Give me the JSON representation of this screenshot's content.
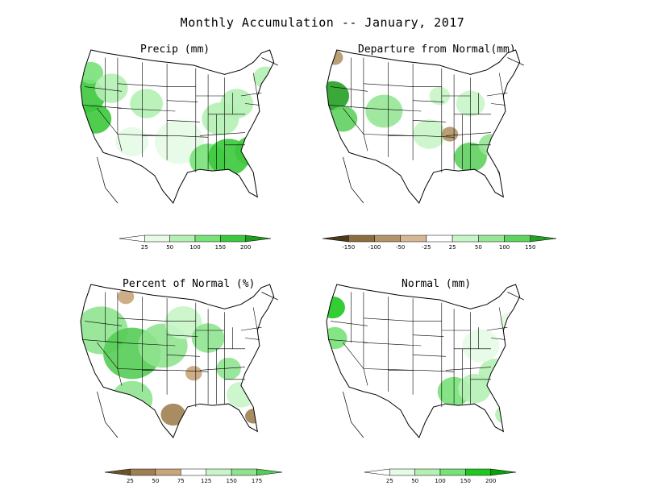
{
  "title": "Monthly Accumulation -- January, 2017",
  "panels": [
    {
      "title": "Precip (mm)",
      "scale": "precip",
      "blobs": [
        {
          "u": 0.03,
          "v": 0.3,
          "r": 0.09,
          "c": 4
        },
        {
          "u": 0.07,
          "v": 0.45,
          "r": 0.08,
          "c": 4
        },
        {
          "u": 0.05,
          "v": 0.15,
          "r": 0.06,
          "c": 3
        },
        {
          "u": 0.15,
          "v": 0.25,
          "r": 0.08,
          "c": 2
        },
        {
          "u": 0.32,
          "v": 0.35,
          "r": 0.08,
          "c": 2
        },
        {
          "u": 0.48,
          "v": 0.6,
          "r": 0.12,
          "c": 1
        },
        {
          "u": 0.62,
          "v": 0.72,
          "r": 0.09,
          "c": 3
        },
        {
          "u": 0.72,
          "v": 0.7,
          "r": 0.1,
          "c": 4
        },
        {
          "u": 0.83,
          "v": 0.66,
          "r": 0.08,
          "c": 4
        },
        {
          "u": 0.68,
          "v": 0.45,
          "r": 0.09,
          "c": 2
        },
        {
          "u": 0.76,
          "v": 0.35,
          "r": 0.08,
          "c": 2
        },
        {
          "u": 0.9,
          "v": 0.18,
          "r": 0.06,
          "c": 2
        },
        {
          "u": 0.25,
          "v": 0.6,
          "r": 0.08,
          "c": 1
        },
        {
          "u": 0.9,
          "v": 0.8,
          "r": 0.06,
          "c": 2
        }
      ]
    },
    {
      "title": "Departure from Normal(mm)",
      "scale": "departure",
      "blobs": [
        {
          "u": 0.03,
          "v": 0.3,
          "r": 0.08,
          "c": 8
        },
        {
          "u": 0.08,
          "v": 0.45,
          "r": 0.07,
          "c": 7
        },
        {
          "u": 0.04,
          "v": 0.05,
          "r": 0.04,
          "c": 2
        },
        {
          "u": 0.28,
          "v": 0.4,
          "r": 0.09,
          "c": 6
        },
        {
          "u": 0.5,
          "v": 0.55,
          "r": 0.08,
          "c": 5
        },
        {
          "u": 0.6,
          "v": 0.55,
          "r": 0.04,
          "c": 2
        },
        {
          "u": 0.7,
          "v": 0.7,
          "r": 0.08,
          "c": 7
        },
        {
          "u": 0.8,
          "v": 0.62,
          "r": 0.06,
          "c": 6
        },
        {
          "u": 0.88,
          "v": 0.78,
          "r": 0.05,
          "c": 2
        },
        {
          "u": 0.7,
          "v": 0.35,
          "r": 0.07,
          "c": 5
        },
        {
          "u": 0.55,
          "v": 0.3,
          "r": 0.05,
          "c": 5
        }
      ]
    },
    {
      "title": "Percent of Normal (%)",
      "scale": "percent",
      "blobs": [
        {
          "u": 0.1,
          "v": 0.3,
          "r": 0.13,
          "c": 5
        },
        {
          "u": 0.25,
          "v": 0.45,
          "r": 0.14,
          "c": 6
        },
        {
          "u": 0.4,
          "v": 0.4,
          "r": 0.12,
          "c": 5
        },
        {
          "u": 0.25,
          "v": 0.75,
          "r": 0.1,
          "c": 5
        },
        {
          "u": 0.5,
          "v": 0.25,
          "r": 0.09,
          "c": 4
        },
        {
          "u": 0.62,
          "v": 0.35,
          "r": 0.08,
          "c": 5
        },
        {
          "u": 0.72,
          "v": 0.55,
          "r": 0.06,
          "c": 5
        },
        {
          "u": 0.45,
          "v": 0.85,
          "r": 0.06,
          "c": 1
        },
        {
          "u": 0.55,
          "v": 0.58,
          "r": 0.04,
          "c": 2
        },
        {
          "u": 0.22,
          "v": 0.08,
          "r": 0.04,
          "c": 2
        },
        {
          "u": 0.84,
          "v": 0.86,
          "r": 0.04,
          "c": 1
        },
        {
          "u": 0.78,
          "v": 0.72,
          "r": 0.07,
          "c": 4
        }
      ]
    },
    {
      "title": "Normal (mm)",
      "scale": "normal",
      "blobs": [
        {
          "u": 0.03,
          "v": 0.15,
          "r": 0.06,
          "c": 4
        },
        {
          "u": 0.04,
          "v": 0.35,
          "r": 0.06,
          "c": 3
        },
        {
          "u": 0.62,
          "v": 0.7,
          "r": 0.08,
          "c": 3
        },
        {
          "u": 0.72,
          "v": 0.68,
          "r": 0.08,
          "c": 2
        },
        {
          "u": 0.82,
          "v": 0.58,
          "r": 0.08,
          "c": 2
        },
        {
          "u": 0.75,
          "v": 0.4,
          "r": 0.09,
          "c": 1
        },
        {
          "u": 0.9,
          "v": 0.25,
          "r": 0.06,
          "c": 1
        },
        {
          "u": 0.87,
          "v": 0.85,
          "r": 0.05,
          "c": 2
        }
      ]
    }
  ],
  "scales": {
    "precip": {
      "labels": [
        "25",
        "50",
        "100",
        "150",
        "200"
      ],
      "colors": [
        "#ffffff",
        "#e6fbe6",
        "#b4f0b4",
        "#78e178",
        "#3cc83c",
        "#1e9e1e"
      ],
      "has_dash_tail": true
    },
    "departure": {
      "labels": [
        "-150",
        "-100",
        "-50",
        "-25",
        "25",
        "50",
        "100",
        "150"
      ],
      "colors": [
        "#4a3a1a",
        "#8c6d3e",
        "#b39468",
        "#d4b894",
        "#ffffff",
        "#c8f5c8",
        "#96e696",
        "#5fd25f",
        "#24a024"
      ]
    },
    "percent": {
      "labels": [
        "25",
        "50",
        "75",
        "125",
        "150",
        "175"
      ],
      "colors": [
        "#6b5228",
        "#a08050",
        "#c9a57a",
        "#ffffff",
        "#c8f5c8",
        "#8fe38f",
        "#55cc55"
      ]
    },
    "normal": {
      "labels": [
        "25",
        "50",
        "100",
        "150",
        "200"
      ],
      "colors": [
        "#ffffff",
        "#e6fbe6",
        "#b4f0b4",
        "#78e178",
        "#1ec81e",
        "#0aa00a"
      ],
      "has_dash_tail": true
    }
  }
}
